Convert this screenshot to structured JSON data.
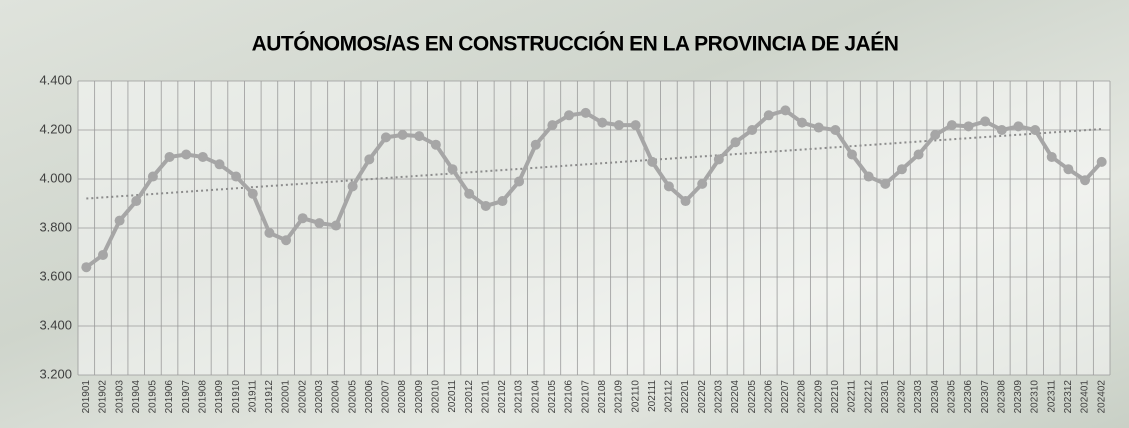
{
  "chart_data": {
    "type": "line",
    "title": "AUTÓNOMOS/AS EN CONSTRUCCIÓN EN LA PROVINCIA DE JAÉN",
    "categories": [
      "201901",
      "201902",
      "201903",
      "201904",
      "201905",
      "201906",
      "201907",
      "201908",
      "201909",
      "201910",
      "201911",
      "201912",
      "202001",
      "202002",
      "202003",
      "202004",
      "202005",
      "202006",
      "202007",
      "202008",
      "202009",
      "202010",
      "202011",
      "202012",
      "202101",
      "202102",
      "202103",
      "202104",
      "202105",
      "202106",
      "202107",
      "202108",
      "202109",
      "202110",
      "202111",
      "202112",
      "202201",
      "202202",
      "202203",
      "202204",
      "202205",
      "202206",
      "202207",
      "202208",
      "202209",
      "202210",
      "202211",
      "202212",
      "202301",
      "202302",
      "202303",
      "202304",
      "202305",
      "202306",
      "202307",
      "202308",
      "202309",
      "202310",
      "202311",
      "202312",
      "202401",
      "202402"
    ],
    "values": [
      3640,
      3690,
      3830,
      3910,
      4010,
      4090,
      4100,
      4090,
      4060,
      4010,
      3940,
      3780,
      3750,
      3840,
      3820,
      3810,
      3970,
      4080,
      4170,
      4180,
      4175,
      4140,
      4040,
      3940,
      3890,
      3910,
      3990,
      4140,
      4220,
      4260,
      4270,
      4230,
      4220,
      4220,
      4070,
      3970,
      3910,
      3980,
      4080,
      4150,
      4200,
      4260,
      4280,
      4230,
      4210,
      4200,
      4100,
      4010,
      3980,
      4040,
      4100,
      4180,
      4220,
      4215,
      4235,
      4200,
      4215,
      4200,
      4090,
      4040,
      3995,
      4070
    ],
    "color": "#a6a6a6",
    "trendline": "linear",
    "trend_color": "#8c8c8c",
    "grid": true,
    "ylim": [
      3200,
      4400
    ],
    "yticks": [
      {
        "value": 3200,
        "label": "3.200"
      },
      {
        "value": 3400,
        "label": "3.400"
      },
      {
        "value": 3600,
        "label": "3.600"
      },
      {
        "value": 3800,
        "label": "3.800"
      },
      {
        "value": 4000,
        "label": "4.000"
      },
      {
        "value": 4200,
        "label": "4.200"
      },
      {
        "value": 4400,
        "label": "4.400"
      }
    ]
  }
}
